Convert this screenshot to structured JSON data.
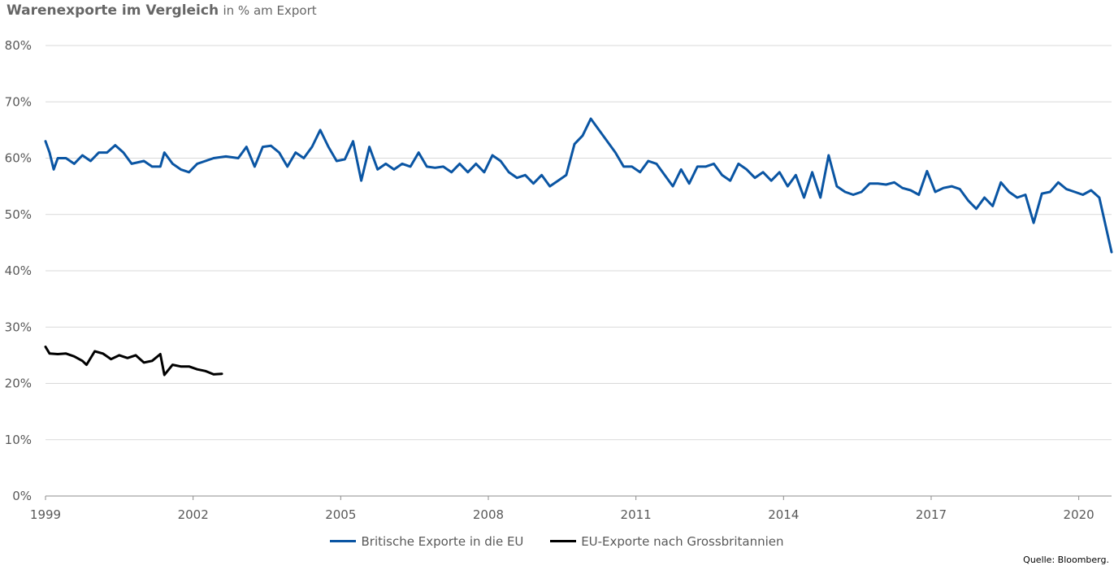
{
  "title": {
    "bold": "Warenexporte im Vergleich",
    "subtitle": "in % am Export"
  },
  "source": "Quelle: Bloomberg.",
  "chart_data": {
    "type": "line",
    "y_tick_labels": [
      "0%",
      "10%",
      "20%",
      "30%",
      "40%",
      "50%",
      "60%",
      "70%",
      "80%"
    ],
    "x_tick_labels": [
      "1999",
      "2002",
      "2005",
      "2008",
      "2011",
      "2014",
      "2017",
      "2020"
    ],
    "ylim": [
      0,
      80
    ],
    "xlim": [
      "1999-01",
      "2020-09"
    ],
    "grid": true,
    "legend_position": "bottom",
    "series": [
      {
        "name": "Britische Exporte in die EU",
        "color": "#0a55a3",
        "points": [
          [
            "1999-01",
            63
          ],
          [
            "1999-02",
            61
          ],
          [
            "1999-03",
            58
          ],
          [
            "1999-04",
            60
          ],
          [
            "1999-06",
            60
          ],
          [
            "1999-08",
            59
          ],
          [
            "1999-10",
            60.5
          ],
          [
            "1999-12",
            59.5
          ],
          [
            "2000-02",
            61
          ],
          [
            "2000-04",
            61
          ],
          [
            "2000-06",
            62.3
          ],
          [
            "2000-08",
            61
          ],
          [
            "2000-10",
            59
          ],
          [
            "2001-01",
            59.5
          ],
          [
            "2001-03",
            58.5
          ],
          [
            "2001-05",
            58.5
          ],
          [
            "2001-06",
            61
          ],
          [
            "2001-08",
            59
          ],
          [
            "2001-10",
            58
          ],
          [
            "2001-12",
            57.5
          ],
          [
            "2002-02",
            59
          ],
          [
            "2002-04",
            59.5
          ],
          [
            "2002-06",
            60
          ],
          [
            "2002-09",
            60.3
          ],
          [
            "2002-12",
            60
          ],
          [
            "2003-02",
            62
          ],
          [
            "2003-04",
            58.5
          ],
          [
            "2003-06",
            62
          ],
          [
            "2003-08",
            62.2
          ],
          [
            "2003-10",
            61
          ],
          [
            "2003-12",
            58.5
          ],
          [
            "2004-02",
            61
          ],
          [
            "2004-04",
            60
          ],
          [
            "2004-06",
            62
          ],
          [
            "2004-08",
            65
          ],
          [
            "2004-10",
            62
          ],
          [
            "2004-12",
            59.5
          ],
          [
            "2005-02",
            59.8
          ],
          [
            "2005-04",
            63
          ],
          [
            "2005-06",
            56
          ],
          [
            "2005-08",
            62
          ],
          [
            "2005-10",
            58
          ],
          [
            "2005-12",
            59
          ],
          [
            "2006-02",
            58
          ],
          [
            "2006-04",
            59
          ],
          [
            "2006-06",
            58.5
          ],
          [
            "2006-08",
            61
          ],
          [
            "2006-10",
            58.5
          ],
          [
            "2006-12",
            58.3
          ],
          [
            "2007-02",
            58.5
          ],
          [
            "2007-04",
            57.5
          ],
          [
            "2007-06",
            59
          ],
          [
            "2007-08",
            57.5
          ],
          [
            "2007-10",
            59
          ],
          [
            "2007-12",
            57.5
          ],
          [
            "2008-02",
            60.5
          ],
          [
            "2008-04",
            59.5
          ],
          [
            "2008-06",
            57.5
          ],
          [
            "2008-08",
            56.5
          ],
          [
            "2008-10",
            57
          ],
          [
            "2008-12",
            55.5
          ],
          [
            "2009-02",
            57
          ],
          [
            "2009-04",
            55
          ],
          [
            "2009-06",
            56
          ],
          [
            "2009-08",
            57
          ],
          [
            "2009-10",
            62.5
          ],
          [
            "2009-12",
            64
          ],
          [
            "2010-02",
            67
          ],
          [
            "2010-04",
            65
          ],
          [
            "2010-06",
            63
          ],
          [
            "2010-08",
            61
          ],
          [
            "2010-10",
            58.5
          ],
          [
            "2010-12",
            58.5
          ],
          [
            "2011-02",
            57.5
          ],
          [
            "2011-04",
            59.5
          ],
          [
            "2011-06",
            59
          ],
          [
            "2011-08",
            57
          ],
          [
            "2011-10",
            55
          ],
          [
            "2011-12",
            58
          ],
          [
            "2012-02",
            55.5
          ],
          [
            "2012-04",
            58.5
          ],
          [
            "2012-06",
            58.5
          ],
          [
            "2012-08",
            59
          ],
          [
            "2012-10",
            57
          ],
          [
            "2012-12",
            56
          ],
          [
            "2013-02",
            59
          ],
          [
            "2013-04",
            58
          ],
          [
            "2013-06",
            56.5
          ],
          [
            "2013-08",
            57.5
          ],
          [
            "2013-10",
            56
          ],
          [
            "2013-12",
            57.5
          ],
          [
            "2014-02",
            55
          ],
          [
            "2014-04",
            57
          ],
          [
            "2014-06",
            53
          ],
          [
            "2014-08",
            57.5
          ],
          [
            "2014-10",
            53
          ],
          [
            "2014-12",
            60.5
          ],
          [
            "2015-02",
            55
          ],
          [
            "2015-04",
            54
          ],
          [
            "2015-06",
            53.5
          ],
          [
            "2015-08",
            54
          ],
          [
            "2015-10",
            55.5
          ],
          [
            "2015-12",
            55.5
          ],
          [
            "2016-02",
            55.3
          ],
          [
            "2016-04",
            55.7
          ],
          [
            "2016-06",
            54.7
          ],
          [
            "2016-08",
            54.3
          ],
          [
            "2016-10",
            53.5
          ],
          [
            "2016-12",
            57.7
          ],
          [
            "2017-02",
            54
          ],
          [
            "2017-04",
            54.7
          ],
          [
            "2017-06",
            55
          ],
          [
            "2017-08",
            54.5
          ],
          [
            "2017-10",
            52.5
          ],
          [
            "2017-12",
            51
          ],
          [
            "2018-02",
            53
          ],
          [
            "2018-04",
            51.5
          ],
          [
            "2018-06",
            55.7
          ],
          [
            "2018-08",
            54
          ],
          [
            "2018-10",
            53
          ],
          [
            "2018-12",
            53.5
          ],
          [
            "2019-02",
            48.5
          ],
          [
            "2019-04",
            53.7
          ],
          [
            "2019-06",
            54
          ],
          [
            "2019-08",
            55.7
          ],
          [
            "2019-10",
            54.5
          ],
          [
            "2019-12",
            54
          ],
          [
            "2020-02",
            53.5
          ],
          [
            "2020-04",
            54.3
          ],
          [
            "2020-06",
            53
          ],
          [
            "2020-09",
            43.3
          ]
        ]
      },
      {
        "name": "EU-Exporte nach Grossbritannien",
        "color": "#000000",
        "points": [
          [
            "1999-01",
            26.5
          ],
          [
            "1999-02",
            25.3
          ],
          [
            "1999-04",
            25.2
          ],
          [
            "1999-06",
            25.3
          ],
          [
            "1999-08",
            24.8
          ],
          [
            "1999-10",
            24
          ],
          [
            "1999-11",
            23.3
          ],
          [
            "2000-01",
            25.7
          ],
          [
            "2000-03",
            25.3
          ],
          [
            "2000-05",
            24.3
          ],
          [
            "2000-07",
            25
          ],
          [
            "2000-09",
            24.5
          ],
          [
            "2000-11",
            25
          ],
          [
            "2001-01",
            23.7
          ],
          [
            "2001-03",
            24
          ],
          [
            "2001-05",
            25.2
          ],
          [
            "2001-06",
            21.5
          ],
          [
            "2001-08",
            23.3
          ],
          [
            "2001-10",
            23
          ],
          [
            "2001-12",
            23
          ],
          [
            "2002-02",
            22.5
          ],
          [
            "2002-04",
            22.2
          ],
          [
            "2002-06",
            21.6
          ],
          [
            "2002-08",
            21.7
          ]
        ]
      }
    ]
  },
  "chart_data_note": "",
  "legend": {
    "items": [
      {
        "label": "Britische Exporte in die EU",
        "color": "#0a55a3"
      },
      {
        "label": "EU-Exporte nach Grossbritannien",
        "color": "#000000"
      }
    ]
  }
}
